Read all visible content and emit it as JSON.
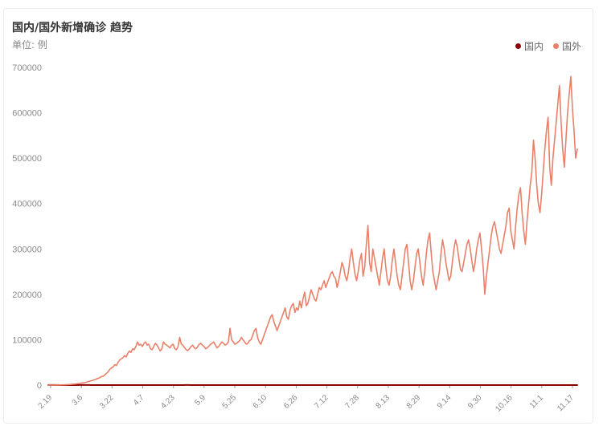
{
  "header": {
    "title": "国内/国外新增确诊 趋势",
    "unit": "单位: 例"
  },
  "legend": [
    {
      "name": "国内",
      "color": "#8b0000"
    },
    {
      "name": "国外",
      "color": "#e8806a"
    }
  ],
  "chart_data": {
    "type": "line",
    "ylim": [
      0,
      700000
    ],
    "yticks": [
      0,
      100000,
      200000,
      300000,
      400000,
      500000,
      600000,
      700000
    ],
    "xtick_labels": [
      "2.19",
      "3.6",
      "3.22",
      "4.7",
      "4.23",
      "5.9",
      "5.25",
      "6.10",
      "6.26",
      "7.12",
      "7.28",
      "8.13",
      "8.29",
      "9.14",
      "9.30",
      "10.16",
      "11.1",
      "11.17"
    ],
    "grid": false,
    "legend_position": "top-right",
    "series": [
      {
        "name": "国内",
        "color": "#8b0000",
        "values": [
          200,
          200,
          300,
          300,
          250,
          200,
          150,
          100,
          80,
          60,
          50,
          40,
          40,
          40,
          50,
          60,
          80,
          100,
          120,
          140,
          150,
          160,
          150,
          130,
          120,
          100,
          90,
          80,
          70,
          60,
          50,
          40,
          30,
          30,
          30,
          30,
          30,
          30,
          40,
          40,
          50,
          40,
          40,
          30,
          30,
          30,
          30,
          30,
          30,
          40,
          50,
          40,
          30,
          30,
          30,
          30,
          30,
          40,
          60,
          80,
          100,
          80,
          60,
          40,
          30,
          30,
          30,
          30,
          30,
          20,
          20,
          20,
          20,
          20,
          20,
          30,
          40,
          60,
          80,
          100,
          120,
          130,
          120,
          110,
          100,
          90,
          80,
          70,
          60,
          50,
          40,
          30,
          30,
          30,
          20,
          20,
          20,
          20,
          20,
          20,
          20,
          20,
          20,
          20,
          20,
          20,
          20,
          20,
          30,
          30,
          20,
          20,
          20,
          20,
          20,
          20,
          20,
          20,
          20,
          20,
          20,
          20,
          20,
          20,
          20,
          20,
          20,
          20,
          20,
          20,
          20,
          20,
          30,
          30,
          30,
          30,
          30,
          30,
          40,
          40,
          30,
          30,
          20,
          20,
          20,
          20,
          20,
          20,
          20,
          20,
          20,
          20,
          20,
          20,
          20,
          20,
          20,
          20,
          20,
          20,
          20,
          20,
          20,
          20,
          20,
          20,
          20,
          20,
          20,
          20,
          20,
          20,
          20,
          20,
          20,
          20,
          20,
          20,
          20,
          20,
          20,
          20,
          20,
          20,
          20,
          20,
          20,
          20,
          20,
          20,
          20,
          20,
          20,
          20,
          20,
          20,
          20,
          20,
          20,
          20,
          30,
          30,
          30,
          30,
          30,
          30,
          30,
          30,
          20,
          20,
          20,
          20,
          20,
          20,
          20,
          20,
          20,
          20,
          20,
          20,
          20,
          20,
          20,
          20,
          20,
          20,
          20,
          20,
          20,
          20,
          20,
          20,
          20,
          20,
          20,
          20,
          20,
          20,
          20,
          20,
          20,
          20,
          20,
          20,
          20,
          20,
          20,
          20,
          20,
          20,
          20,
          20,
          20,
          20,
          20,
          20,
          20,
          20,
          20,
          20,
          20,
          20,
          20,
          20,
          20,
          20,
          20,
          20,
          20,
          20,
          20,
          20,
          20,
          20,
          20,
          20,
          20,
          20,
          20,
          20,
          20,
          20,
          20,
          20,
          20,
          20,
          20,
          20,
          20,
          20,
          20,
          20,
          20,
          20,
          20,
          20,
          20,
          20,
          20,
          20,
          20,
          20,
          20,
          20,
          20,
          20,
          20,
          20,
          20
        ]
      },
      {
        "name": "国外",
        "color": "#e8806a",
        "values": [
          100,
          100,
          150,
          150,
          200,
          250,
          300,
          300,
          400,
          500,
          600,
          800,
          1000,
          1200,
          1500,
          1800,
          2000,
          2500,
          3000,
          3500,
          4000,
          4500,
          5000,
          6000,
          7000,
          8000,
          9000,
          10000,
          11000,
          12000,
          14000,
          15000,
          17000,
          19000,
          20000,
          23000,
          26000,
          30000,
          35000,
          38000,
          40000,
          45000,
          43000,
          50000,
          55000,
          58000,
          60000,
          65000,
          62000,
          70000,
          75000,
          72000,
          80000,
          78000,
          85000,
          95000,
          88000,
          90000,
          85000,
          92000,
          95000,
          88000,
          90000,
          80000,
          78000,
          85000,
          92000,
          88000,
          82000,
          75000,
          80000,
          95000,
          90000,
          88000,
          85000,
          82000,
          88000,
          90000,
          80000,
          78000,
          85000,
          105000,
          90000,
          88000,
          82000,
          78000,
          76000,
          80000,
          85000,
          88000,
          82000,
          80000,
          84000,
          90000,
          92000,
          88000,
          85000,
          80000,
          82000,
          86000,
          90000,
          92000,
          95000,
          88000,
          82000,
          85000,
          90000,
          95000,
          92000,
          88000,
          90000,
          95000,
          125000,
          100000,
          95000,
          90000,
          92000,
          95000,
          98000,
          105000,
          100000,
          95000,
          90000,
          92000,
          98000,
          100000,
          110000,
          120000,
          125000,
          105000,
          95000,
          90000,
          100000,
          110000,
          120000,
          130000,
          140000,
          150000,
          155000,
          140000,
          130000,
          120000,
          130000,
          140000,
          150000,
          160000,
          170000,
          150000,
          145000,
          165000,
          175000,
          180000,
          160000,
          170000,
          165000,
          185000,
          170000,
          190000,
          205000,
          175000,
          180000,
          195000,
          210000,
          200000,
          190000,
          185000,
          200000,
          215000,
          210000,
          220000,
          230000,
          215000,
          225000,
          235000,
          245000,
          250000,
          240000,
          235000,
          215000,
          230000,
          250000,
          270000,
          260000,
          240000,
          230000,
          250000,
          280000,
          300000,
          270000,
          245000,
          230000,
          250000,
          275000,
          290000,
          240000,
          260000,
          310000,
          352000,
          270000,
          250000,
          300000,
          280000,
          260000,
          240000,
          220000,
          250000,
          280000,
          300000,
          260000,
          230000,
          220000,
          240000,
          275000,
          300000,
          270000,
          240000,
          220000,
          210000,
          240000,
          270000,
          300000,
          310000,
          270000,
          230000,
          210000,
          230000,
          260000,
          290000,
          300000,
          270000,
          240000,
          220000,
          250000,
          290000,
          320000,
          335000,
          290000,
          250000,
          230000,
          210000,
          230000,
          250000,
          290000,
          320000,
          300000,
          270000,
          250000,
          230000,
          240000,
          270000,
          300000,
          320000,
          305000,
          280000,
          255000,
          250000,
          270000,
          290000,
          310000,
          320000,
          300000,
          275000,
          250000,
          270000,
          300000,
          320000,
          335000,
          300000,
          260000,
          200000,
          240000,
          270000,
          300000,
          330000,
          350000,
          360000,
          340000,
          320000,
          300000,
          290000,
          310000,
          330000,
          350000,
          380000,
          390000,
          340000,
          320000,
          300000,
          350000,
          390000,
          420000,
          435000,
          380000,
          340000,
          310000,
          360000,
          400000,
          440000,
          470000,
          540000,
          500000,
          440000,
          400000,
          380000,
          420000,
          470000,
          520000,
          560000,
          590000,
          480000,
          440000,
          500000,
          540000,
          580000,
          620000,
          660000,
          580000,
          520000,
          480000,
          540000,
          600000,
          640000,
          680000,
          610000,
          560000,
          500000,
          520000
        ]
      }
    ]
  }
}
